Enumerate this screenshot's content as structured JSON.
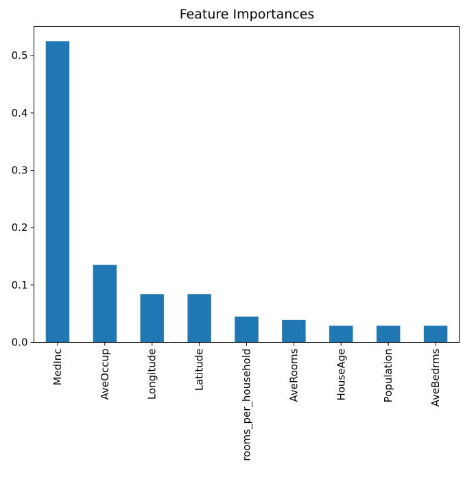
{
  "chart_data": {
    "type": "bar",
    "title": "Feature Importances",
    "xlabel": "",
    "ylabel": "",
    "categories": [
      "MedInc",
      "AveOccup",
      "Longitude",
      "Latitude",
      "rooms_per_household",
      "AveRooms",
      "HouseAge",
      "Population",
      "AveBedrms"
    ],
    "values": [
      0.525,
      0.135,
      0.084,
      0.084,
      0.045,
      0.039,
      0.029,
      0.029,
      0.029
    ],
    "ylim": [
      0.0,
      0.551
    ],
    "yticks": [
      "0.0",
      "0.1",
      "0.2",
      "0.3",
      "0.4",
      "0.5"
    ],
    "grid": false,
    "legend": "none",
    "bar_color": "#1f77b4"
  }
}
